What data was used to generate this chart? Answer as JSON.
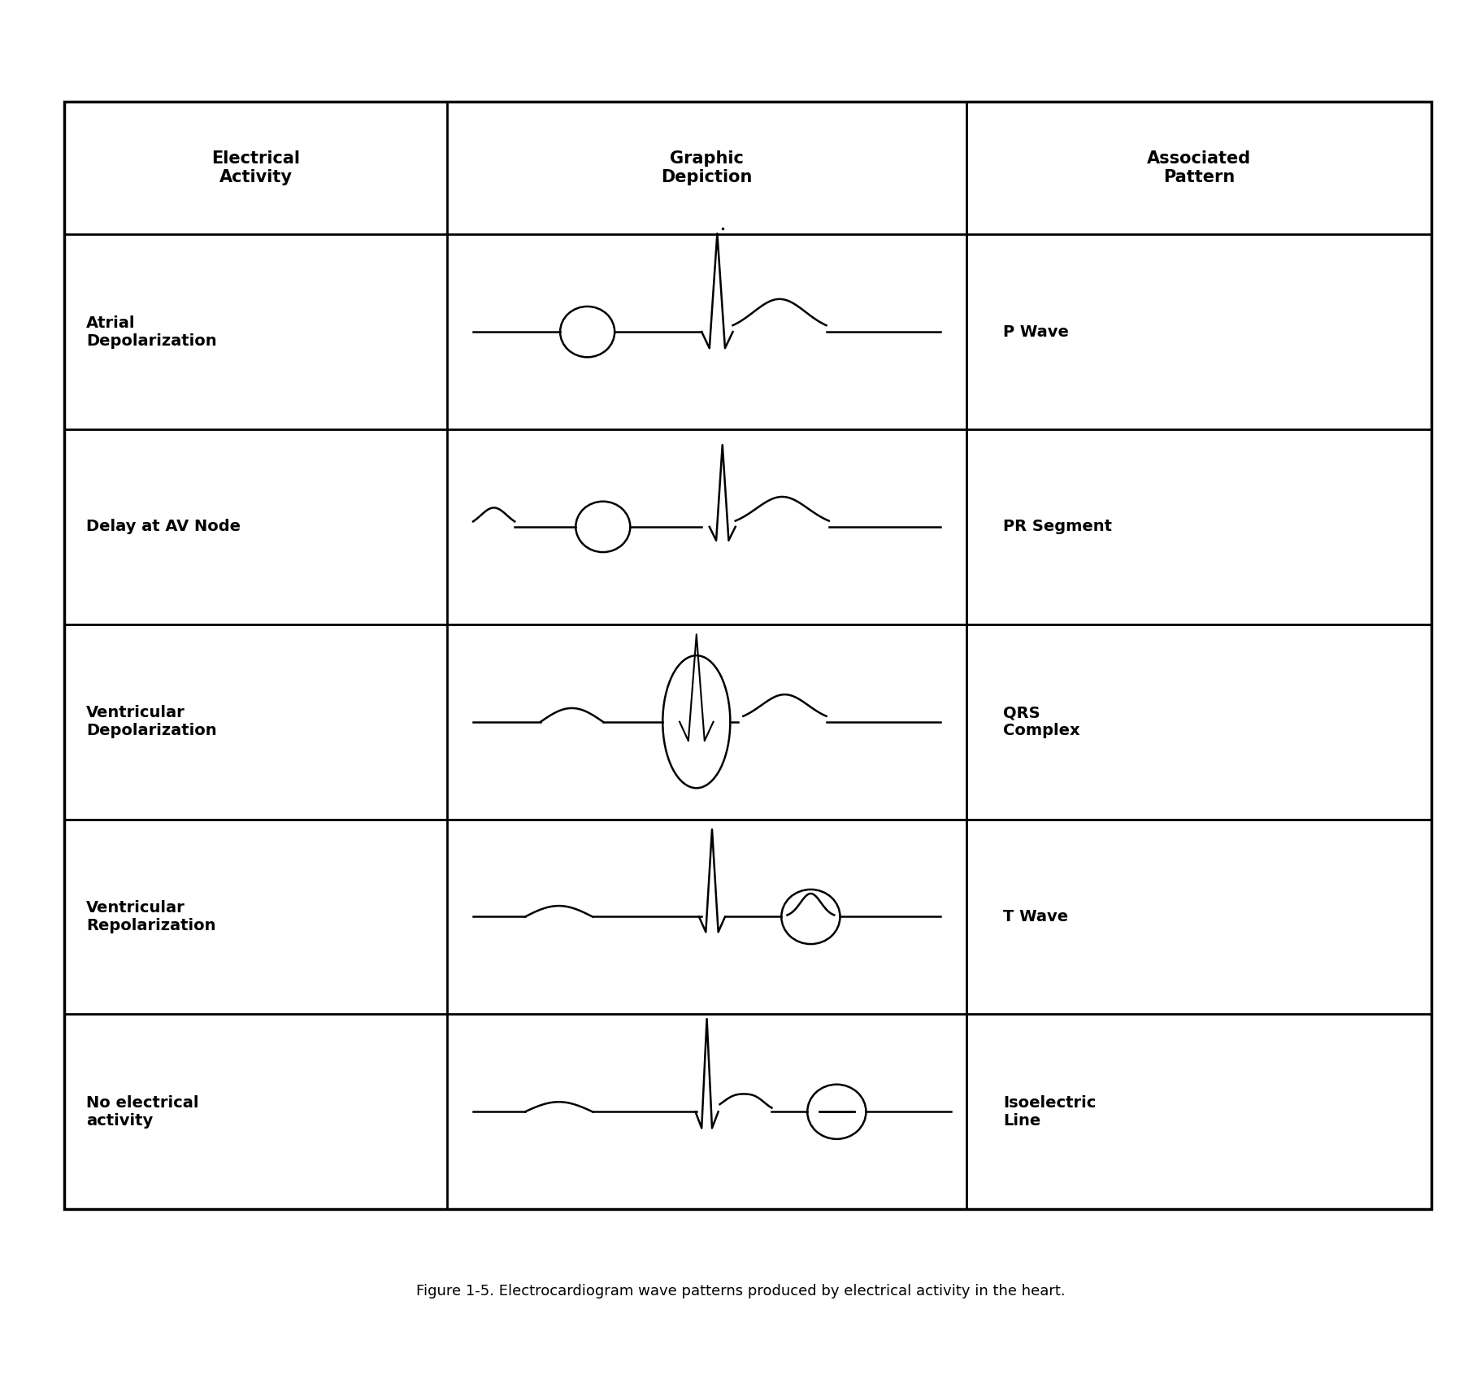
{
  "title": "Figure 1-5. Electrocardiogram wave patterns produced by electrical activity in the heart.",
  "col_headers": [
    "Electrical\nActivity",
    "Graphic\nDepiction",
    "Associated\nPattern"
  ],
  "rows": [
    {
      "activity": "Atrial\nDepolarization",
      "pattern": "P Wave",
      "circle_type": "small_left"
    },
    {
      "activity": "Delay at AV Node",
      "pattern": "PR Segment",
      "circle_type": "small_left_lower"
    },
    {
      "activity": "Ventricular\nDepolarization",
      "pattern": "QRS\nComplex",
      "circle_type": "tall_ellipse"
    },
    {
      "activity": "Ventricular\nRepolarization",
      "pattern": "T Wave",
      "circle_type": "small_right"
    },
    {
      "activity": "No electrical\nactivity",
      "pattern": "Isoelectric\nLine",
      "circle_type": "small_right_dash"
    }
  ],
  "bg_color": "#ffffff",
  "line_color": "#000000",
  "text_color": "#000000",
  "header_fontsize": 15,
  "cell_fontsize": 14,
  "caption_fontsize": 13
}
